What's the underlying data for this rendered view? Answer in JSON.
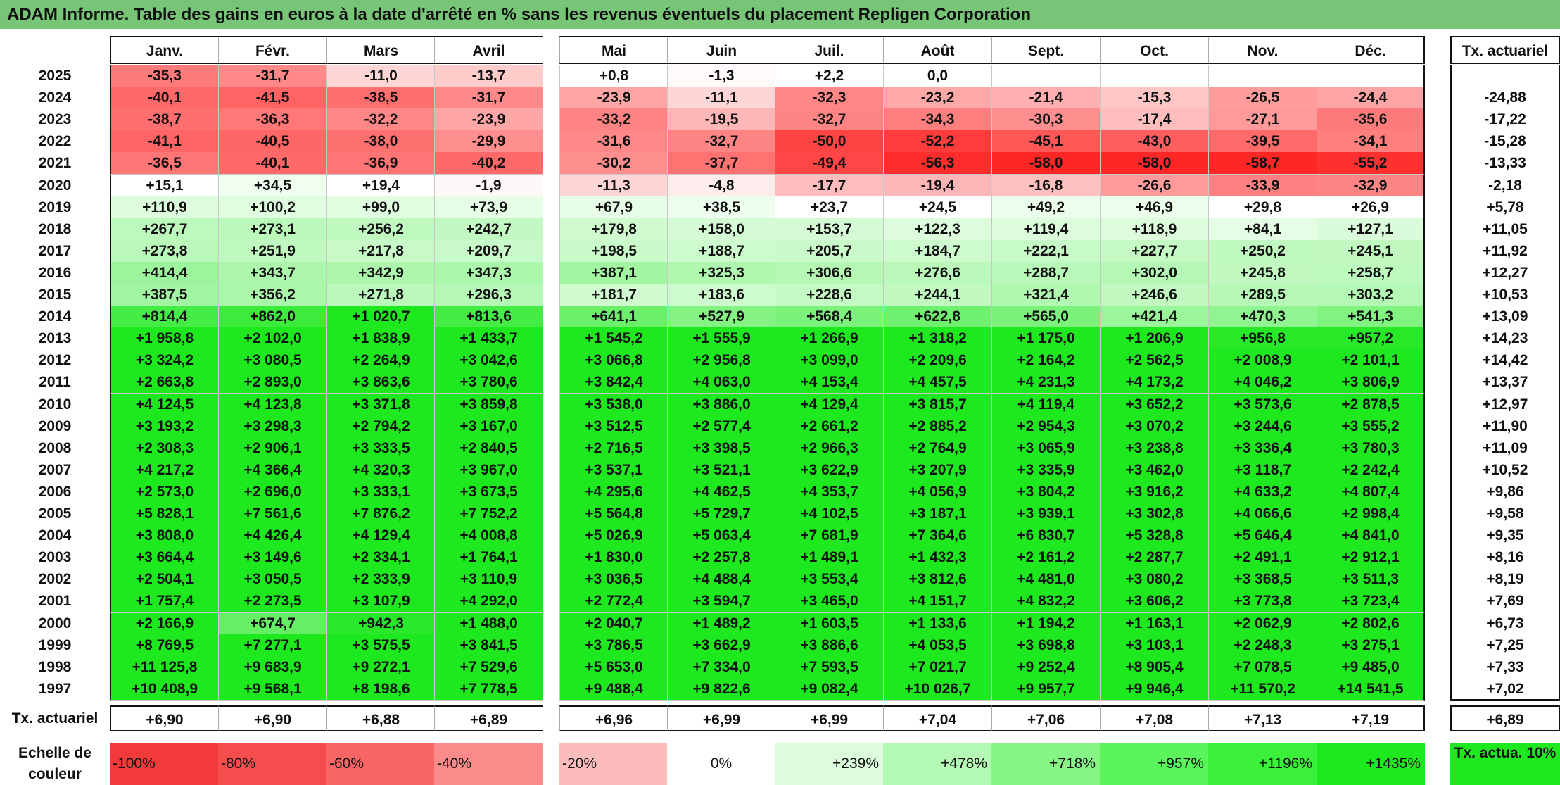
{
  "title": "ADAM Informe. Table des gains en euros à la date d'arrêté en % sans les revenus éventuels du placement Repligen Corporation",
  "chart_data": {
    "type": "heatmap",
    "title": "ADAM Informe. Table des gains en euros à la date d'arrêté en % sans les revenus éventuels du placement Repligen Corporation",
    "columns": [
      "Janv.",
      "Févr.",
      "Mars",
      "Avril",
      "Mai",
      "Juin",
      "Juil.",
      "Août",
      "Sept.",
      "Oct.",
      "Nov.",
      "Déc."
    ],
    "annual_header": "Tx. actuariel",
    "rows": [
      {
        "year": "2025",
        "values": [
          "-35,3",
          "-31,7",
          "-11,0",
          "-13,7",
          "+0,8",
          "-1,3",
          "+2,2",
          "0,0",
          "",
          "",
          "",
          ""
        ],
        "annual": ""
      },
      {
        "year": "2024",
        "values": [
          "-40,1",
          "-41,5",
          "-38,5",
          "-31,7",
          "-23,9",
          "-11,1",
          "-32,3",
          "-23,2",
          "-21,4",
          "-15,3",
          "-26,5",
          "-24,4"
        ],
        "annual": "-24,88"
      },
      {
        "year": "2023",
        "values": [
          "-38,7",
          "-36,3",
          "-32,2",
          "-23,9",
          "-33,2",
          "-19,5",
          "-32,7",
          "-34,3",
          "-30,3",
          "-17,4",
          "-27,1",
          "-35,6"
        ],
        "annual": "-17,22"
      },
      {
        "year": "2022",
        "values": [
          "-41,1",
          "-40,5",
          "-38,0",
          "-29,9",
          "-31,6",
          "-32,7",
          "-50,0",
          "-52,2",
          "-45,1",
          "-43,0",
          "-39,5",
          "-34,1"
        ],
        "annual": "-15,28"
      },
      {
        "year": "2021",
        "values": [
          "-36,5",
          "-40,1",
          "-36,9",
          "-40,2",
          "-30,2",
          "-37,7",
          "-49,4",
          "-56,3",
          "-58,0",
          "-58,0",
          "-58,7",
          "-55,2"
        ],
        "annual": "-13,33"
      },
      {
        "year": "2020",
        "values": [
          "+15,1",
          "+34,5",
          "+19,4",
          "-1,9",
          "-11,3",
          "-4,8",
          "-17,7",
          "-19,4",
          "-16,8",
          "-26,6",
          "-33,9",
          "-32,9"
        ],
        "annual": "-2,18"
      },
      {
        "year": "2019",
        "values": [
          "+110,9",
          "+100,2",
          "+99,0",
          "+73,9",
          "+67,9",
          "+38,5",
          "+23,7",
          "+24,5",
          "+49,2",
          "+46,9",
          "+29,8",
          "+26,9"
        ],
        "annual": "+5,78"
      },
      {
        "year": "2018",
        "values": [
          "+267,7",
          "+273,1",
          "+256,2",
          "+242,7",
          "+179,8",
          "+158,0",
          "+153,7",
          "+122,3",
          "+119,4",
          "+118,9",
          "+84,1",
          "+127,1"
        ],
        "annual": "+11,05"
      },
      {
        "year": "2017",
        "values": [
          "+273,8",
          "+251,9",
          "+217,8",
          "+209,7",
          "+198,5",
          "+188,7",
          "+205,7",
          "+184,7",
          "+222,1",
          "+227,7",
          "+250,2",
          "+245,1"
        ],
        "annual": "+11,92"
      },
      {
        "year": "2016",
        "values": [
          "+414,4",
          "+343,7",
          "+342,9",
          "+347,3",
          "+387,1",
          "+325,3",
          "+306,6",
          "+276,6",
          "+288,7",
          "+302,0",
          "+245,8",
          "+258,7"
        ],
        "annual": "+12,27"
      },
      {
        "year": "2015",
        "values": [
          "+387,5",
          "+356,2",
          "+271,8",
          "+296,3",
          "+181,7",
          "+183,6",
          "+228,6",
          "+244,1",
          "+321,4",
          "+246,6",
          "+289,5",
          "+303,2"
        ],
        "annual": "+10,53"
      },
      {
        "year": "2014",
        "values": [
          "+814,4",
          "+862,0",
          "+1 020,7",
          "+813,6",
          "+641,1",
          "+527,9",
          "+568,4",
          "+622,8",
          "+565,0",
          "+421,4",
          "+470,3",
          "+541,3"
        ],
        "annual": "+13,09"
      },
      {
        "year": "2013",
        "values": [
          "+1 958,8",
          "+2 102,0",
          "+1 838,9",
          "+1 433,7",
          "+1 545,2",
          "+1 555,9",
          "+1 266,9",
          "+1 318,2",
          "+1 175,0",
          "+1 206,9",
          "+956,8",
          "+957,2"
        ],
        "annual": "+14,23"
      },
      {
        "year": "2012",
        "values": [
          "+3 324,2",
          "+3 080,5",
          "+2 264,9",
          "+3 042,6",
          "+3 066,8",
          "+2 956,8",
          "+3 099,0",
          "+2 209,6",
          "+2 164,2",
          "+2 562,5",
          "+2 008,9",
          "+2 101,1"
        ],
        "annual": "+14,42"
      },
      {
        "year": "2011",
        "values": [
          "+2 663,8",
          "+2 893,0",
          "+3 863,6",
          "+3 780,6",
          "+3 842,4",
          "+4 063,0",
          "+4 153,4",
          "+4 457,5",
          "+4 231,3",
          "+4 173,2",
          "+4 046,2",
          "+3 806,9"
        ],
        "annual": "+13,37"
      },
      {
        "year": "2010",
        "values": [
          "+4 124,5",
          "+4 123,8",
          "+3 371,8",
          "+3 859,8",
          "+3 538,0",
          "+3 886,0",
          "+4 129,4",
          "+3 815,7",
          "+4 119,4",
          "+3 652,2",
          "+3 573,6",
          "+2 878,5"
        ],
        "annual": "+12,97"
      },
      {
        "year": "2009",
        "values": [
          "+3 193,2",
          "+3 298,3",
          "+2 794,2",
          "+3 167,0",
          "+3 512,5",
          "+2 577,4",
          "+2 661,2",
          "+2 885,2",
          "+2 954,3",
          "+3 070,2",
          "+3 244,6",
          "+3 555,2"
        ],
        "annual": "+11,90"
      },
      {
        "year": "2008",
        "values": [
          "+2 308,3",
          "+2 906,1",
          "+3 333,5",
          "+2 840,5",
          "+2 716,5",
          "+3 398,5",
          "+2 966,3",
          "+2 764,9",
          "+3 065,9",
          "+3 238,8",
          "+3 336,4",
          "+3 780,3"
        ],
        "annual": "+11,09"
      },
      {
        "year": "2007",
        "values": [
          "+4 217,2",
          "+4 366,4",
          "+4 320,3",
          "+3 967,0",
          "+3 537,1",
          "+3 521,1",
          "+3 622,9",
          "+3 207,9",
          "+3 335,9",
          "+3 462,0",
          "+3 118,7",
          "+2 242,4"
        ],
        "annual": "+10,52"
      },
      {
        "year": "2006",
        "values": [
          "+2 573,0",
          "+2 696,0",
          "+3 333,1",
          "+3 673,5",
          "+4 295,6",
          "+4 462,5",
          "+4 353,7",
          "+4 056,9",
          "+3 804,2",
          "+3 916,2",
          "+4 633,2",
          "+4 807,4"
        ],
        "annual": "+9,86"
      },
      {
        "year": "2005",
        "values": [
          "+5 828,1",
          "+7 561,6",
          "+7 876,2",
          "+7 752,2",
          "+5 564,8",
          "+5 729,7",
          "+4 102,5",
          "+3 187,1",
          "+3 939,1",
          "+3 302,8",
          "+4 066,6",
          "+2 998,4"
        ],
        "annual": "+9,58"
      },
      {
        "year": "2004",
        "values": [
          "+3 808,0",
          "+4 426,4",
          "+4 129,4",
          "+4 008,8",
          "+5 026,9",
          "+5 063,4",
          "+7 681,9",
          "+7 364,6",
          "+6 830,7",
          "+5 328,8",
          "+5 646,4",
          "+4 841,0"
        ],
        "annual": "+9,35"
      },
      {
        "year": "2003",
        "values": [
          "+3 664,4",
          "+3 149,6",
          "+2 334,1",
          "+1 764,1",
          "+1 830,0",
          "+2 257,8",
          "+1 489,1",
          "+1 432,3",
          "+2 161,2",
          "+2 287,7",
          "+2 491,1",
          "+2 912,1"
        ],
        "annual": "+8,16"
      },
      {
        "year": "2002",
        "values": [
          "+2 504,1",
          "+3 050,5",
          "+2 333,9",
          "+3 110,9",
          "+3 036,5",
          "+4 488,4",
          "+3 553,4",
          "+3 812,6",
          "+4 481,0",
          "+3 080,2",
          "+3 368,5",
          "+3 511,3"
        ],
        "annual": "+8,19"
      },
      {
        "year": "2001",
        "values": [
          "+1 757,4",
          "+2 273,5",
          "+3 107,9",
          "+4 292,0",
          "+2 772,4",
          "+3 594,7",
          "+3 465,0",
          "+4 151,7",
          "+4 832,2",
          "+3 606,2",
          "+3 773,8",
          "+3 723,4"
        ],
        "annual": "+7,69"
      },
      {
        "year": "2000",
        "values": [
          "+2 166,9",
          "+674,7",
          "+942,3",
          "+1 488,0",
          "+2 040,7",
          "+1 489,2",
          "+1 603,5",
          "+1 133,6",
          "+1 194,2",
          "+1 163,1",
          "+2 062,9",
          "+2 802,6"
        ],
        "annual": "+6,73"
      },
      {
        "year": "1999",
        "values": [
          "+8 769,5",
          "+7 277,1",
          "+3 575,5",
          "+3 841,5",
          "+3 786,5",
          "+3 662,9",
          "+3 886,6",
          "+4 053,5",
          "+3 698,8",
          "+3 103,1",
          "+2 248,3",
          "+3 275,1"
        ],
        "annual": "+7,25"
      },
      {
        "year": "1998",
        "values": [
          "+11 125,8",
          "+9 683,9",
          "+9 272,1",
          "+7 529,6",
          "+5 653,0",
          "+7 334,0",
          "+7 593,5",
          "+7 021,7",
          "+9 252,4",
          "+8 905,4",
          "+7 078,5",
          "+9 485,0"
        ],
        "annual": "+7,33"
      },
      {
        "year": "1997",
        "values": [
          "+10 408,9",
          "+9 568,1",
          "+8 198,6",
          "+7 778,5",
          "+9 488,4",
          "+9 822,6",
          "+9 082,4",
          "+10 026,7",
          "+9 957,7",
          "+9 946,4",
          "+11 570,2",
          "+14 541,5"
        ],
        "annual": "+7,02"
      }
    ],
    "footer": {
      "label": "Tx. actuariel",
      "values": [
        "+6,90",
        "+6,90",
        "+6,88",
        "+6,89",
        "+6,96",
        "+6,99",
        "+6,99",
        "+7,04",
        "+7,06",
        "+7,08",
        "+7,13",
        "+7,19"
      ],
      "annual": "+6,89"
    },
    "scale": {
      "label": "Echelle de couleur",
      "stops": [
        "-100%",
        "-80%",
        "-60%",
        "-40%",
        "-20%",
        "0%",
        "+239%",
        "+478%",
        "+718%",
        "+957%",
        "+1196%",
        "+1435%"
      ],
      "stop_colors": [
        "#f23a3a",
        "#f54d4d",
        "#f86565",
        "#fb8a8a",
        "#fdbcbc",
        "#ffffff",
        "#dcfcdc",
        "#b4fab4",
        "#86f786",
        "#5af55a",
        "#3af03a",
        "#1ee81e"
      ],
      "annual_note": "Tx. actua. 10%",
      "annual_note_color": "#1ee81e"
    }
  }
}
